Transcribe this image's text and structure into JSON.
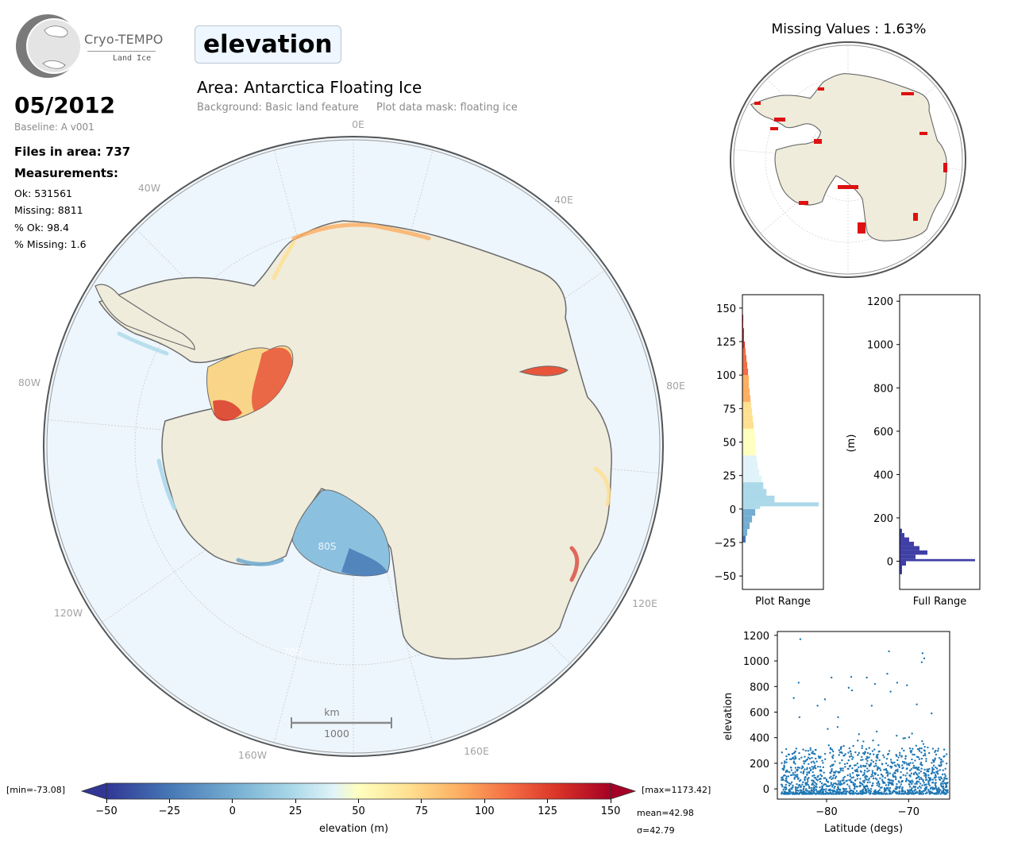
{
  "logo": {
    "brand": "Cryo-TEMPO",
    "subtitle": "Land Ice"
  },
  "variable": "elevation",
  "date": "05/2012",
  "baseline": "Baseline: A v001",
  "files_in_area": "Files in area: 737",
  "measurements": {
    "heading": "Measurements:",
    "ok": "Ok: 531561",
    "missing": "Missing: 8811",
    "pct_ok": "% Ok: 98.4",
    "pct_missing": "% Missing: 1.6"
  },
  "area_title": "Area: Antarctica Floating Ice",
  "background_note": "Background: Basic land feature",
  "mask_note": "Plot data mask: floating ice",
  "map": {
    "longitude_labels": [
      "0E",
      "40E",
      "80E",
      "120E",
      "160E",
      "160W",
      "120W",
      "80W",
      "40W"
    ],
    "latitude_labels": [
      "80S",
      "70S"
    ],
    "scale_unit": "km",
    "scale_value": "1000",
    "colors": {
      "ocean": "#eef6fd",
      "land": "#efecdc",
      "coast": "#6b6b6b"
    }
  },
  "missing_values_title": "Missing Values : 1.63%",
  "colorbar": {
    "label": "elevation (m)",
    "ticks": [
      "−50",
      "−25",
      "0",
      "25",
      "50",
      "75",
      "100",
      "125",
      "150"
    ],
    "min_label": "[min=-73.08]",
    "max_label": "[max=1173.42]",
    "mean_label": "mean=42.98",
    "sigma_label": "σ=42.79",
    "colormap": "RdYlBu_r"
  },
  "chart_data": [
    {
      "type": "bar",
      "orientation": "horizontal",
      "xlabel": "Plot Range",
      "ylabel": "",
      "ylim": [
        -60,
        160
      ],
      "yticks": [
        "150",
        "125",
        "100",
        "75",
        "50",
        "25",
        "0",
        "−25",
        "−50"
      ],
      "bins": [
        -25,
        -20,
        -15,
        -10,
        -5,
        0,
        2,
        5,
        10,
        15,
        20,
        25,
        30,
        35,
        40,
        45,
        50,
        55,
        60,
        65,
        70,
        75,
        80,
        85,
        90,
        95,
        100,
        105,
        110,
        115,
        120,
        125,
        130,
        135,
        140
      ],
      "values": [
        4,
        6,
        9,
        12,
        16,
        22,
        95,
        40,
        30,
        26,
        24,
        21,
        19,
        18,
        17,
        16,
        16,
        15,
        14,
        13,
        12,
        11,
        10,
        9,
        8,
        8,
        7,
        6,
        5,
        4,
        3,
        2,
        2,
        1,
        1
      ]
    },
    {
      "type": "bar",
      "orientation": "horizontal",
      "xlabel": "Full Range",
      "ylabel": "(m)",
      "ylim": [
        -130,
        1230
      ],
      "yticks": [
        "1200",
        "1000",
        "800",
        "600",
        "400",
        "200",
        "0"
      ],
      "bins": [
        -60,
        -20,
        0,
        10,
        30,
        50,
        70,
        90,
        110,
        130
      ],
      "values": [
        3,
        8,
        95,
        20,
        35,
        25,
        18,
        12,
        6,
        3
      ],
      "color": "#3f3fa5"
    },
    {
      "type": "scatter",
      "xlabel": "Latitude (degs)",
      "ylabel": "elevation",
      "xlim": [
        -86,
        -65
      ],
      "ylim": [
        -80,
        1230
      ],
      "xticks": [
        "−80",
        "−70"
      ],
      "yticks": [
        "1200",
        "1000",
        "800",
        "600",
        "400",
        "200",
        "0"
      ],
      "color": "#1f77b4",
      "outliers": [
        {
          "x": -83.2,
          "y": 1170
        },
        {
          "x": -72.4,
          "y": 1075
        },
        {
          "x": -68.3,
          "y": 1060
        },
        {
          "x": -68.1,
          "y": 1020
        },
        {
          "x": -68.4,
          "y": 990
        },
        {
          "x": -75.1,
          "y": 870
        },
        {
          "x": -77.0,
          "y": 875
        },
        {
          "x": -79.4,
          "y": 870
        },
        {
          "x": -83.4,
          "y": 830
        },
        {
          "x": -77.3,
          "y": 790
        },
        {
          "x": -76.9,
          "y": 770
        },
        {
          "x": -74.1,
          "y": 820
        },
        {
          "x": -71.4,
          "y": 830
        },
        {
          "x": -70.2,
          "y": 810
        },
        {
          "x": -72.6,
          "y": 900
        },
        {
          "x": -72.2,
          "y": 760
        },
        {
          "x": -84.0,
          "y": 710
        },
        {
          "x": -80.2,
          "y": 700
        },
        {
          "x": -81.1,
          "y": 650
        },
        {
          "x": -74.5,
          "y": 650
        },
        {
          "x": -69.0,
          "y": 660
        },
        {
          "x": -67.2,
          "y": 590
        },
        {
          "x": -83.3,
          "y": 560
        },
        {
          "x": -78.6,
          "y": 560
        }
      ]
    }
  ]
}
